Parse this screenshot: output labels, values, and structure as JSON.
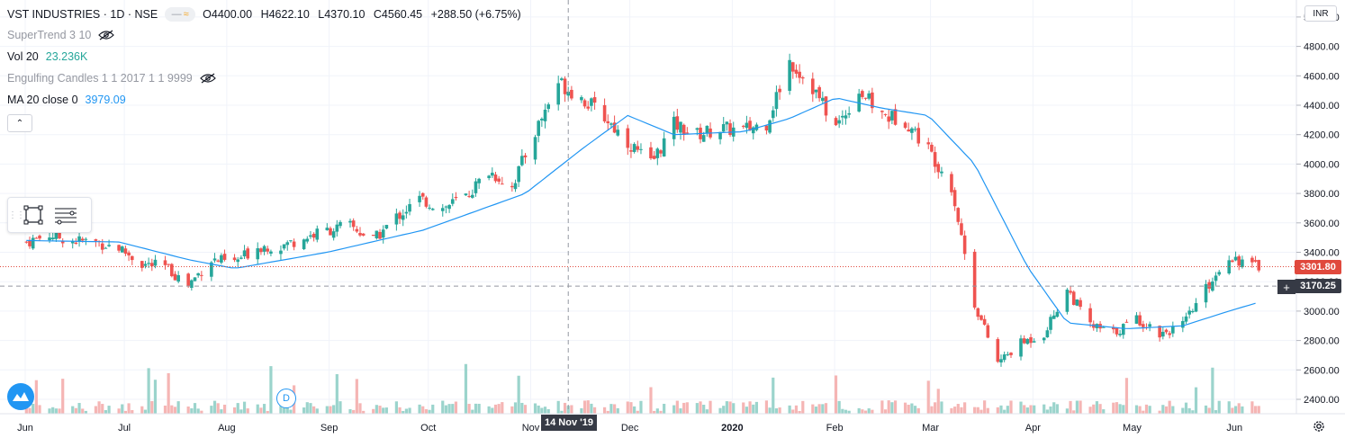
{
  "header": {
    "symbol": "VST INDUSTRIES · 1D · NSE",
    "open": "O4400.00",
    "high": "H4622.10",
    "low": "L4370.10",
    "close": "C4560.45",
    "change": "+288.50 (+6.75%)"
  },
  "indicators": {
    "supertrend": {
      "label": "SuperTrend 3 10"
    },
    "vol": {
      "label": "Vol 20",
      "value": "23.236K"
    },
    "engulfing": {
      "label": "Engulfing Candles 1 1 2017 1 1 9999"
    },
    "ma": {
      "label": "MA 20 close 0",
      "value": "3979.09"
    }
  },
  "currency": "INR",
  "price_badges": {
    "last": "3301.80",
    "crosshair": "3170.25"
  },
  "crosshair_date": "14 Nov '19",
  "colors": {
    "up": "#26a69a",
    "down": "#ef5350",
    "ma": "#2196f3",
    "up_vol": "#9bd4cc",
    "down_vol": "#f5b5b4",
    "last_price": "#e0493d",
    "crosshair_badge": "#363a45"
  },
  "chart_data": {
    "type": "candlestick",
    "y_axis": {
      "min": 2300,
      "max": 5000,
      "ticks": [
        2400,
        2600,
        2800,
        3000,
        3200,
        3400,
        3600,
        3800,
        4000,
        4200,
        4400,
        4600,
        4800,
        5000
      ]
    },
    "x_axis": {
      "labels": [
        "Jun",
        "Jul",
        "Aug",
        "Sep",
        "Oct",
        "Nov",
        "Dec",
        "2020",
        "Feb",
        "Mar",
        "Apr",
        "May",
        "Jun"
      ]
    },
    "weekly_closes": [
      [
        "2019-06-03",
        3470
      ],
      [
        "2019-06-10",
        3520
      ],
      [
        "2019-06-17",
        3480
      ],
      [
        "2019-06-24",
        3470
      ],
      [
        "2019-07-01",
        3430
      ],
      [
        "2019-07-08",
        3320
      ],
      [
        "2019-07-15",
        3300
      ],
      [
        "2019-07-22",
        3180
      ],
      [
        "2019-07-29",
        3350
      ],
      [
        "2019-08-05",
        3330
      ],
      [
        "2019-08-12",
        3440
      ],
      [
        "2019-08-19",
        3440
      ],
      [
        "2019-08-26",
        3500
      ],
      [
        "2019-09-02",
        3550
      ],
      [
        "2019-09-09",
        3580
      ],
      [
        "2019-09-16",
        3480
      ],
      [
        "2019-09-23",
        3640
      ],
      [
        "2019-09-30",
        3760
      ],
      [
        "2019-10-07",
        3700
      ],
      [
        "2019-10-14",
        3780
      ],
      [
        "2019-10-21",
        3950
      ],
      [
        "2019-10-28",
        3850
      ],
      [
        "2019-11-04",
        4220
      ],
      [
        "2019-11-11",
        4560
      ],
      [
        "2019-11-18",
        4450
      ],
      [
        "2019-11-25",
        4320
      ],
      [
        "2019-12-02",
        4150
      ],
      [
        "2019-12-09",
        4000
      ],
      [
        "2019-12-16",
        4270
      ],
      [
        "2019-12-23",
        4200
      ],
      [
        "2019-12-30",
        4240
      ],
      [
        "2020-01-06",
        4230
      ],
      [
        "2020-01-13",
        4280
      ],
      [
        "2020-01-20",
        4700
      ],
      [
        "2020-01-27",
        4520
      ],
      [
        "2020-02-03",
        4250
      ],
      [
        "2020-02-10",
        4500
      ],
      [
        "2020-02-17",
        4330
      ],
      [
        "2020-02-24",
        4300
      ],
      [
        "2020-03-02",
        4100
      ],
      [
        "2020-03-09",
        3850
      ],
      [
        "2020-03-16",
        3050
      ],
      [
        "2020-03-23",
        2650
      ],
      [
        "2020-03-30",
        2780
      ],
      [
        "2020-04-06",
        2850
      ],
      [
        "2020-04-13",
        3150
      ],
      [
        "2020-04-20",
        2900
      ],
      [
        "2020-04-27",
        2850
      ],
      [
        "2020-05-04",
        2950
      ],
      [
        "2020-05-11",
        2850
      ],
      [
        "2020-05-18",
        2900
      ],
      [
        "2020-05-25",
        3150
      ],
      [
        "2020-06-01",
        3380
      ],
      [
        "2020-06-08",
        3302
      ]
    ],
    "ma20": [
      [
        "2019-06-03",
        3480
      ],
      [
        "2019-07-01",
        3470
      ],
      [
        "2019-07-22",
        3350
      ],
      [
        "2019-08-05",
        3290
      ],
      [
        "2019-09-02",
        3400
      ],
      [
        "2019-10-01",
        3550
      ],
      [
        "2019-11-01",
        3800
      ],
      [
        "2019-11-18",
        4100
      ],
      [
        "2019-12-02",
        4330
      ],
      [
        "2019-12-16",
        4200
      ],
      [
        "2020-01-06",
        4220
      ],
      [
        "2020-01-20",
        4310
      ],
      [
        "2020-02-03",
        4450
      ],
      [
        "2020-02-17",
        4380
      ],
      [
        "2020-03-02",
        4330
      ],
      [
        "2020-03-16",
        4000
      ],
      [
        "2020-04-01",
        3300
      ],
      [
        "2020-04-13",
        2920
      ],
      [
        "2020-05-01",
        2880
      ],
      [
        "2020-05-18",
        2900
      ],
      [
        "2020-06-01",
        3000
      ],
      [
        "2020-06-10",
        3060
      ]
    ]
  }
}
